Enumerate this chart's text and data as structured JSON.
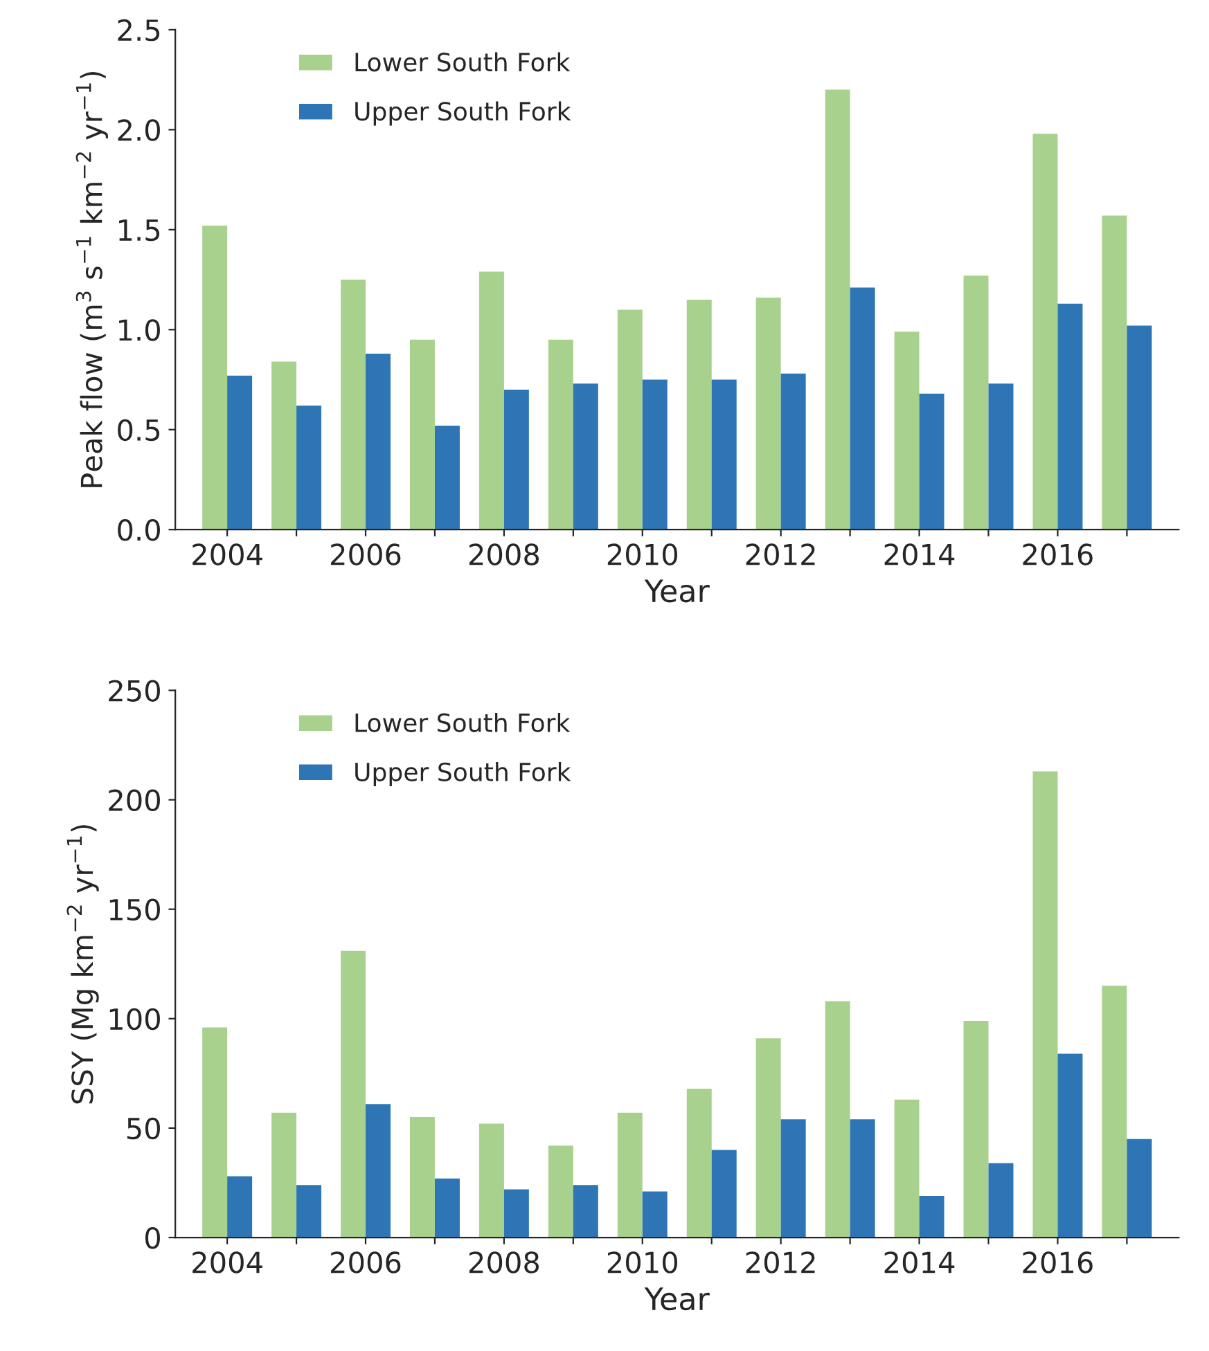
{
  "chart_data": [
    {
      "type": "bar",
      "ylabel": "Peak flow (m$^{3}$ s$^{−1}$ km$^{−2}$ yr$^{−1}$)",
      "xlabel": "Year",
      "categories": [
        "2004",
        null,
        "2006",
        null,
        "2008",
        null,
        "2010",
        null,
        "2012",
        null,
        "2014",
        null,
        "2016",
        null
      ],
      "series": [
        {
          "name": "Lower South Fork",
          "color": "#a9d18e",
          "values": [
            1.52,
            0.84,
            1.25,
            0.95,
            1.29,
            0.95,
            1.1,
            1.15,
            1.16,
            2.2,
            0.99,
            1.27,
            1.98,
            1.57
          ]
        },
        {
          "name": "Upper South Fork",
          "color": "#2e75b6",
          "values": [
            0.77,
            0.62,
            0.88,
            0.52,
            0.7,
            0.73,
            0.75,
            0.75,
            0.78,
            1.21,
            0.68,
            0.73,
            1.13,
            1.02
          ]
        }
      ],
      "ylim": [
        0,
        2.5
      ],
      "yticks": [
        {
          "value": 0,
          "label": "0.0"
        },
        {
          "value": 0.5,
          "label": "0.5"
        },
        {
          "value": 1,
          "label": "1.0"
        },
        {
          "value": 1.5,
          "label": "1.5"
        },
        {
          "value": 2,
          "label": "2.0"
        },
        {
          "value": 2.5,
          "label": "2.5"
        }
      ],
      "grid": false,
      "legend": "top left"
    },
    {
      "type": "bar",
      "ylabel": "SSY (Mg km$^{−2}$ yr$^{−1}$)",
      "xlabel": "Year",
      "categories": [
        "2004",
        null,
        "2006",
        null,
        "2008",
        null,
        "2010",
        null,
        "2012",
        null,
        "2014",
        null,
        "2016",
        null
      ],
      "series": [
        {
          "name": "Lower South Fork",
          "color": "#a9d18e",
          "values": [
            96,
            57,
            131,
            55,
            52,
            42,
            57,
            68,
            91,
            108,
            63,
            99,
            213,
            115
          ]
        },
        {
          "name": "Upper South Fork",
          "color": "#2e75b6",
          "values": [
            28,
            24,
            61,
            27,
            22,
            24,
            21,
            40,
            54,
            54,
            19,
            34,
            84,
            45
          ]
        }
      ],
      "ylim": [
        0,
        250
      ],
      "yticks": [
        0,
        50,
        100,
        150,
        200,
        250
      ],
      "grid": false,
      "legend": "top left"
    }
  ]
}
